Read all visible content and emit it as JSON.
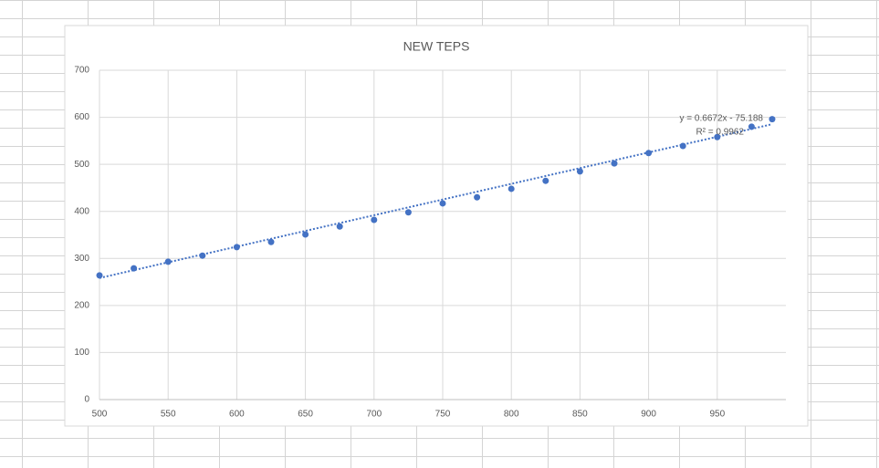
{
  "chart_data": {
    "type": "scatter",
    "title": "NEW TEPS",
    "series": [
      {
        "name": "NEW TEPS",
        "color": "#4472c4",
        "x": [
          500,
          525,
          550,
          575,
          600,
          625,
          650,
          675,
          700,
          725,
          750,
          775,
          800,
          825,
          850,
          875,
          900,
          925,
          950,
          975,
          990
        ],
        "values": [
          264,
          279,
          293,
          306,
          324,
          335,
          351,
          368,
          382,
          398,
          417,
          430,
          448,
          465,
          485,
          502,
          524,
          539,
          558,
          580,
          596
        ]
      }
    ],
    "trendline": {
      "slope": 0.6672,
      "intercept": -75.188,
      "label": "y = 0.6672x - 75.188",
      "r2_label": "R² = 0.9962",
      "color": "#4472c4"
    },
    "xlim": [
      500,
      1000
    ],
    "xticks": [
      500,
      550,
      600,
      650,
      700,
      750,
      800,
      850,
      900,
      950
    ],
    "ylim": [
      0,
      700
    ],
    "yticks": [
      0,
      100,
      200,
      300,
      400,
      500,
      600,
      700
    ],
    "grid": true
  }
}
